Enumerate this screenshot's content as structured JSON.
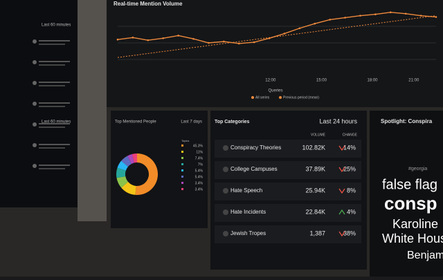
{
  "left_panel": {
    "header": "Last 60 minutes",
    "section_header": "Last 60 minutes"
  },
  "mention_chart": {
    "title": "Real-time Mention Volume",
    "x_ticks": [
      "12:00",
      "15:00",
      "18:00",
      "21:00"
    ],
    "legend_title": "Queries",
    "ylim": [
      0,
      100
    ],
    "series": [
      {
        "name": "All series",
        "color": "#f08a3c",
        "values": [
          55,
          58,
          54,
          57,
          61,
          56,
          50,
          52,
          49,
          51,
          57,
          64,
          72,
          79,
          85,
          88,
          91,
          93,
          96,
          94,
          91,
          89
        ]
      },
      {
        "name": "Previous period (mean)",
        "color": "#f08a3c",
        "values": [
          28,
          31,
          34,
          37,
          40,
          43,
          46,
          49,
          52,
          55,
          58,
          61,
          64,
          67,
          70,
          73,
          76,
          79,
          82,
          85,
          88,
          91
        ]
      }
    ]
  },
  "people": {
    "title": "Top Mentioned People",
    "period": "Last 7 days",
    "legend_title": "Topics",
    "slices": [
      {
        "color": "#f28c28",
        "value": 45.3,
        "label": "45.3%"
      },
      {
        "color": "#f5c518",
        "value": 11,
        "label": "11%"
      },
      {
        "color": "#8bc34a",
        "value": 7.4,
        "label": "7.4%"
      },
      {
        "color": "#26a69a",
        "value": 7,
        "label": "7%"
      },
      {
        "color": "#29b6f6",
        "value": 5.4,
        "label": "5.4%"
      },
      {
        "color": "#5c6bc0",
        "value": 5.4,
        "label": "5.4%"
      },
      {
        "color": "#ab47bc",
        "value": 3.4,
        "label": "3.4%"
      },
      {
        "color": "#ec407a",
        "value": 3.4,
        "label": "3.4%"
      }
    ]
  },
  "categories": {
    "title": "Top Categories",
    "period": "Last 24 hours",
    "volume_header": "VOLUME",
    "change_header": "CHANGE",
    "rows": [
      {
        "name": "Conspiracy Theories",
        "volume": "102.82K",
        "change": "14%",
        "direction": "down"
      },
      {
        "name": "College Campuses",
        "volume": "37.89K",
        "change": "25%",
        "direction": "down"
      },
      {
        "name": "Hate Speech",
        "volume": "25.94K",
        "change": "8%",
        "direction": "down"
      },
      {
        "name": "Hate Incidents",
        "volume": "22.84K",
        "change": "4%",
        "direction": "up"
      },
      {
        "name": "Jewish Tropes",
        "volume": "1,387",
        "change": "38%",
        "direction": "down"
      }
    ]
  },
  "spotlight": {
    "title": "Spotlight: Conspira",
    "words": [
      "#georgia",
      "false flag",
      "consp",
      "Karoline",
      "White Hous",
      "Benjam"
    ]
  }
}
